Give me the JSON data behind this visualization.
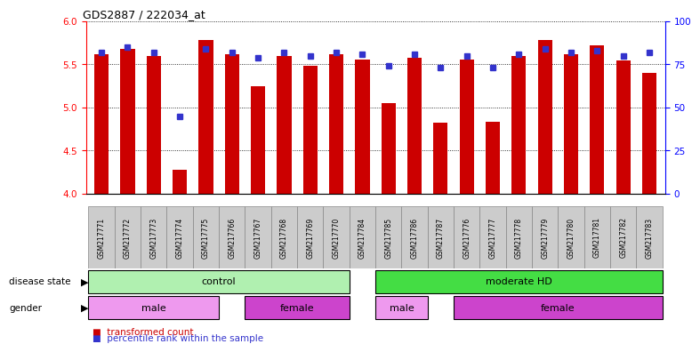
{
  "title": "GDS2887 / 222034_at",
  "samples": [
    "GSM217771",
    "GSM217772",
    "GSM217773",
    "GSM217774",
    "GSM217775",
    "GSM217766",
    "GSM217767",
    "GSM217768",
    "GSM217769",
    "GSM217770",
    "GSM217784",
    "GSM217785",
    "GSM217786",
    "GSM217787",
    "GSM217776",
    "GSM217777",
    "GSM217778",
    "GSM217779",
    "GSM217780",
    "GSM217781",
    "GSM217782",
    "GSM217783"
  ],
  "transformed_count": [
    5.62,
    5.68,
    5.6,
    4.28,
    5.78,
    5.62,
    5.25,
    5.6,
    5.48,
    5.62,
    5.56,
    5.05,
    5.58,
    4.82,
    5.56,
    4.83,
    5.6,
    5.78,
    5.62,
    5.72,
    5.55,
    5.4
  ],
  "percentile_rank": [
    82,
    85,
    82,
    45,
    84,
    82,
    79,
    82,
    80,
    82,
    81,
    74,
    81,
    73,
    80,
    73,
    81,
    84,
    82,
    83,
    80,
    82
  ],
  "ylim_left": [
    4.0,
    6.0
  ],
  "ylim_right": [
    0,
    100
  ],
  "yticks_left": [
    4.0,
    4.5,
    5.0,
    5.5,
    6.0
  ],
  "yticks_right": [
    0,
    25,
    50,
    75,
    100
  ],
  "bar_color": "#cc0000",
  "dot_color": "#3333cc",
  "disease_color_control": "#b0f0b0",
  "disease_color_moderate": "#44dd44",
  "gender_color_male": "#ee99ee",
  "gender_color_female": "#cc44cc",
  "legend_labels": [
    "transformed count",
    "percentile rank within the sample"
  ],
  "legend_colors": [
    "#cc0000",
    "#3333cc"
  ],
  "tick_bg": "#cccccc",
  "tick_border": "#888888"
}
